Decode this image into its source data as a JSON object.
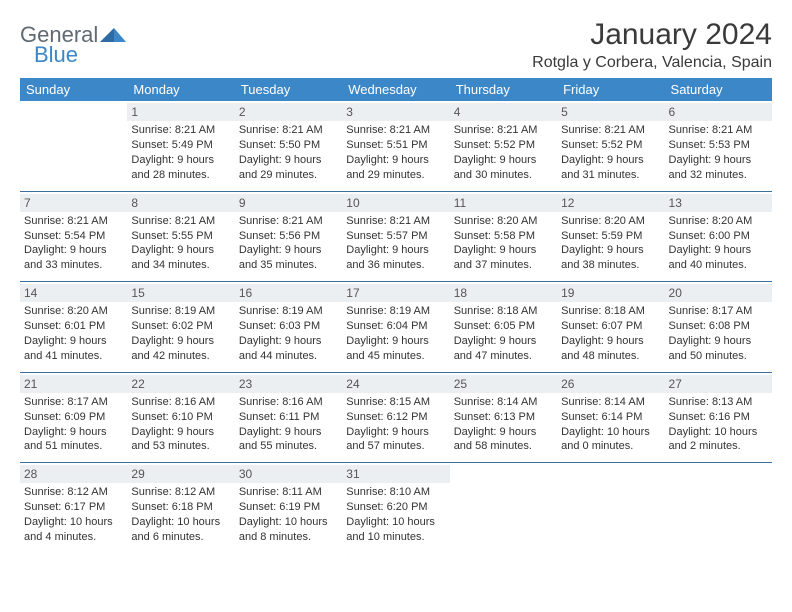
{
  "logo": {
    "text1": "General",
    "text2": "Blue"
  },
  "title": "January 2024",
  "location": "Rotgla y Corbera, Valencia, Spain",
  "colors": {
    "header_bg": "#3b87c8",
    "header_text": "#ffffff",
    "daybar_bg": "#eceff1",
    "row_border": "#3b6f9e",
    "text": "#333333",
    "logo_gray": "#5f6a72",
    "logo_blue": "#3b87c8"
  },
  "weekdays": [
    "Sunday",
    "Monday",
    "Tuesday",
    "Wednesday",
    "Thursday",
    "Friday",
    "Saturday"
  ],
  "first_weekday_index": 1,
  "days": [
    {
      "n": 1,
      "sunrise": "8:21 AM",
      "sunset": "5:49 PM",
      "daylight": "9 hours and 28 minutes."
    },
    {
      "n": 2,
      "sunrise": "8:21 AM",
      "sunset": "5:50 PM",
      "daylight": "9 hours and 29 minutes."
    },
    {
      "n": 3,
      "sunrise": "8:21 AM",
      "sunset": "5:51 PM",
      "daylight": "9 hours and 29 minutes."
    },
    {
      "n": 4,
      "sunrise": "8:21 AM",
      "sunset": "5:52 PM",
      "daylight": "9 hours and 30 minutes."
    },
    {
      "n": 5,
      "sunrise": "8:21 AM",
      "sunset": "5:52 PM",
      "daylight": "9 hours and 31 minutes."
    },
    {
      "n": 6,
      "sunrise": "8:21 AM",
      "sunset": "5:53 PM",
      "daylight": "9 hours and 32 minutes."
    },
    {
      "n": 7,
      "sunrise": "8:21 AM",
      "sunset": "5:54 PM",
      "daylight": "9 hours and 33 minutes."
    },
    {
      "n": 8,
      "sunrise": "8:21 AM",
      "sunset": "5:55 PM",
      "daylight": "9 hours and 34 minutes."
    },
    {
      "n": 9,
      "sunrise": "8:21 AM",
      "sunset": "5:56 PM",
      "daylight": "9 hours and 35 minutes."
    },
    {
      "n": 10,
      "sunrise": "8:21 AM",
      "sunset": "5:57 PM",
      "daylight": "9 hours and 36 minutes."
    },
    {
      "n": 11,
      "sunrise": "8:20 AM",
      "sunset": "5:58 PM",
      "daylight": "9 hours and 37 minutes."
    },
    {
      "n": 12,
      "sunrise": "8:20 AM",
      "sunset": "5:59 PM",
      "daylight": "9 hours and 38 minutes."
    },
    {
      "n": 13,
      "sunrise": "8:20 AM",
      "sunset": "6:00 PM",
      "daylight": "9 hours and 40 minutes."
    },
    {
      "n": 14,
      "sunrise": "8:20 AM",
      "sunset": "6:01 PM",
      "daylight": "9 hours and 41 minutes."
    },
    {
      "n": 15,
      "sunrise": "8:19 AM",
      "sunset": "6:02 PM",
      "daylight": "9 hours and 42 minutes."
    },
    {
      "n": 16,
      "sunrise": "8:19 AM",
      "sunset": "6:03 PM",
      "daylight": "9 hours and 44 minutes."
    },
    {
      "n": 17,
      "sunrise": "8:19 AM",
      "sunset": "6:04 PM",
      "daylight": "9 hours and 45 minutes."
    },
    {
      "n": 18,
      "sunrise": "8:18 AM",
      "sunset": "6:05 PM",
      "daylight": "9 hours and 47 minutes."
    },
    {
      "n": 19,
      "sunrise": "8:18 AM",
      "sunset": "6:07 PM",
      "daylight": "9 hours and 48 minutes."
    },
    {
      "n": 20,
      "sunrise": "8:17 AM",
      "sunset": "6:08 PM",
      "daylight": "9 hours and 50 minutes."
    },
    {
      "n": 21,
      "sunrise": "8:17 AM",
      "sunset": "6:09 PM",
      "daylight": "9 hours and 51 minutes."
    },
    {
      "n": 22,
      "sunrise": "8:16 AM",
      "sunset": "6:10 PM",
      "daylight": "9 hours and 53 minutes."
    },
    {
      "n": 23,
      "sunrise": "8:16 AM",
      "sunset": "6:11 PM",
      "daylight": "9 hours and 55 minutes."
    },
    {
      "n": 24,
      "sunrise": "8:15 AM",
      "sunset": "6:12 PM",
      "daylight": "9 hours and 57 minutes."
    },
    {
      "n": 25,
      "sunrise": "8:14 AM",
      "sunset": "6:13 PM",
      "daylight": "9 hours and 58 minutes."
    },
    {
      "n": 26,
      "sunrise": "8:14 AM",
      "sunset": "6:14 PM",
      "daylight": "10 hours and 0 minutes."
    },
    {
      "n": 27,
      "sunrise": "8:13 AM",
      "sunset": "6:16 PM",
      "daylight": "10 hours and 2 minutes."
    },
    {
      "n": 28,
      "sunrise": "8:12 AM",
      "sunset": "6:17 PM",
      "daylight": "10 hours and 4 minutes."
    },
    {
      "n": 29,
      "sunrise": "8:12 AM",
      "sunset": "6:18 PM",
      "daylight": "10 hours and 6 minutes."
    },
    {
      "n": 30,
      "sunrise": "8:11 AM",
      "sunset": "6:19 PM",
      "daylight": "10 hours and 8 minutes."
    },
    {
      "n": 31,
      "sunrise": "8:10 AM",
      "sunset": "6:20 PM",
      "daylight": "10 hours and 10 minutes."
    }
  ],
  "labels": {
    "sunrise": "Sunrise:",
    "sunset": "Sunset:",
    "daylight": "Daylight:"
  },
  "typography": {
    "title_fontsize": 30,
    "location_fontsize": 16,
    "header_fontsize": 13,
    "cell_fontsize": 11
  }
}
